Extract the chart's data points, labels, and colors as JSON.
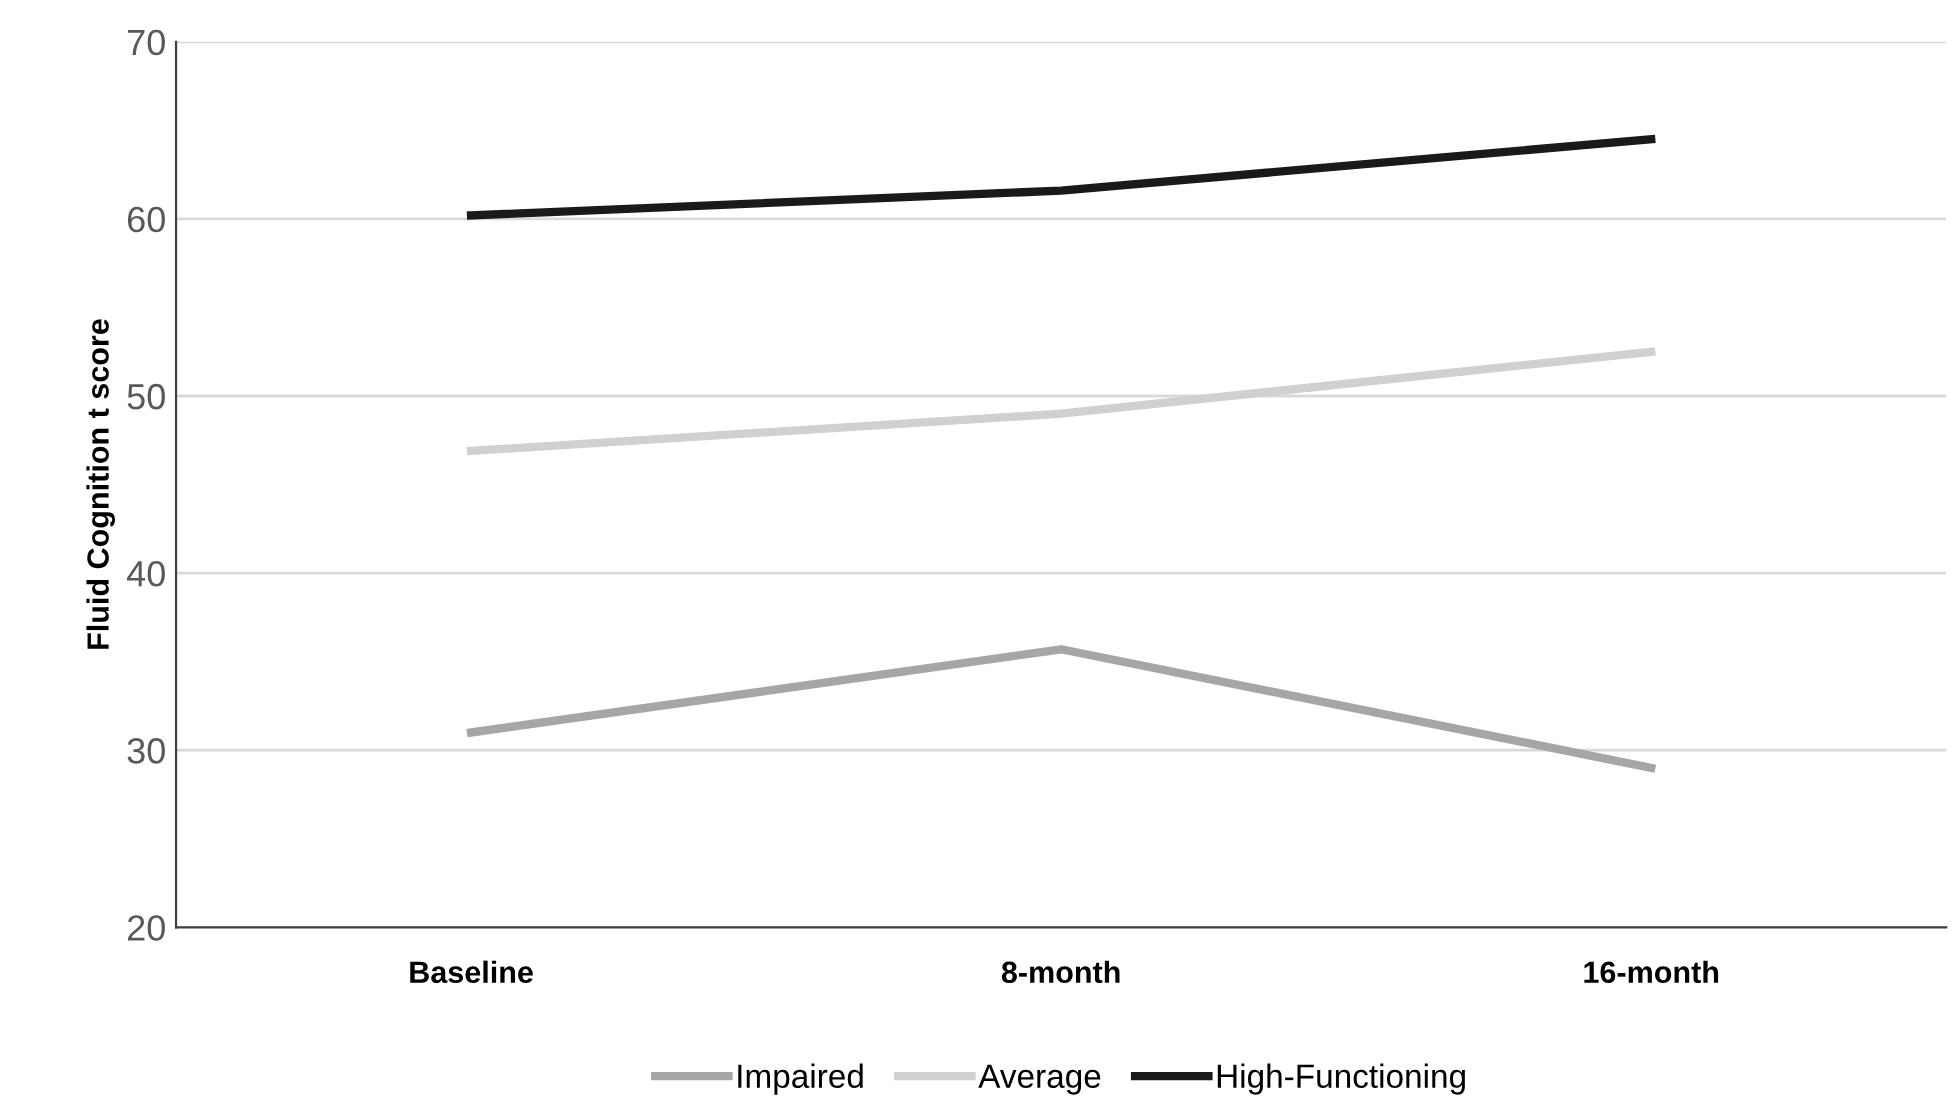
{
  "chart_data": {
    "type": "line",
    "ylabel": "Fluid Cognition t score",
    "categories": [
      "Baseline",
      "8-month",
      "16-month"
    ],
    "series": [
      {
        "name": "Impaired",
        "color": "#a6a6a6",
        "values": [
          31.0,
          35.7,
          29.0
        ]
      },
      {
        "name": "Average",
        "color": "#d0d0d0",
        "values": [
          46.9,
          49.0,
          52.5
        ]
      },
      {
        "name": "High-Functioning",
        "color": "#1a1a1a",
        "values": [
          60.2,
          61.6,
          64.5
        ]
      }
    ],
    "ylim": [
      20,
      70
    ],
    "yticks": [
      20,
      30,
      40,
      50,
      60,
      70
    ],
    "grid": "y",
    "legend": "bottom",
    "marker": "none",
    "line_style": "solid"
  }
}
